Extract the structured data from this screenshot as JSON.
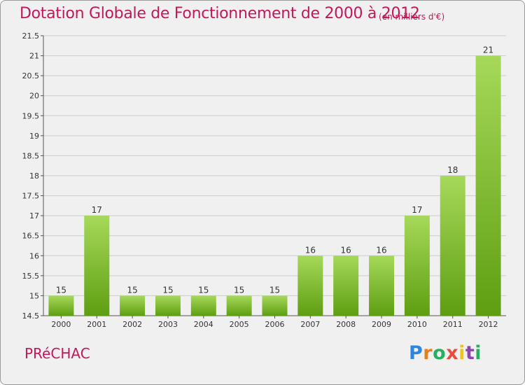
{
  "header": {
    "title": "Dotation Globale de Fonctionnement de 2000 à 2012",
    "subtitle": "(en milliers d'€)"
  },
  "footer": {
    "town": "PRéCHAC",
    "logo_text": "Proxiti",
    "logo_colors": [
      "#2e86de",
      "#e67e22",
      "#27ae60",
      "#e74c3c",
      "#f1c40f",
      "#8e44ad",
      "#27ae60"
    ]
  },
  "colors": {
    "title": "#c2185b",
    "bar_light": "#a6d95a",
    "bar_dark": "#5e9e12",
    "plot_bg": "#f0f0f0",
    "grid": "#cccccc"
  },
  "chart_data": {
    "type": "bar",
    "title": "Dotation Globale de Fonctionnement de 2000 à 2012",
    "subtitle": "(en milliers d'€)",
    "categories": [
      "2000",
      "2001",
      "2002",
      "2003",
      "2004",
      "2005",
      "2006",
      "2007",
      "2008",
      "2009",
      "2010",
      "2011",
      "2012"
    ],
    "values": [
      15,
      17,
      15,
      15,
      15,
      15,
      15,
      16,
      16,
      16,
      17,
      18,
      21
    ],
    "data_labels": [
      "15",
      "17",
      "15",
      "15",
      "15",
      "15",
      "15",
      "16",
      "16",
      "16",
      "17",
      "18",
      "21"
    ],
    "ylim": [
      14.5,
      21.5
    ],
    "yticks": [
      "14.5",
      "15",
      "15.5",
      "16",
      "16.5",
      "17",
      "17.5",
      "18",
      "18.5",
      "19",
      "19.5",
      "20",
      "20.5",
      "21",
      "21.5"
    ],
    "grid": true,
    "xlabel": "",
    "ylabel": ""
  }
}
